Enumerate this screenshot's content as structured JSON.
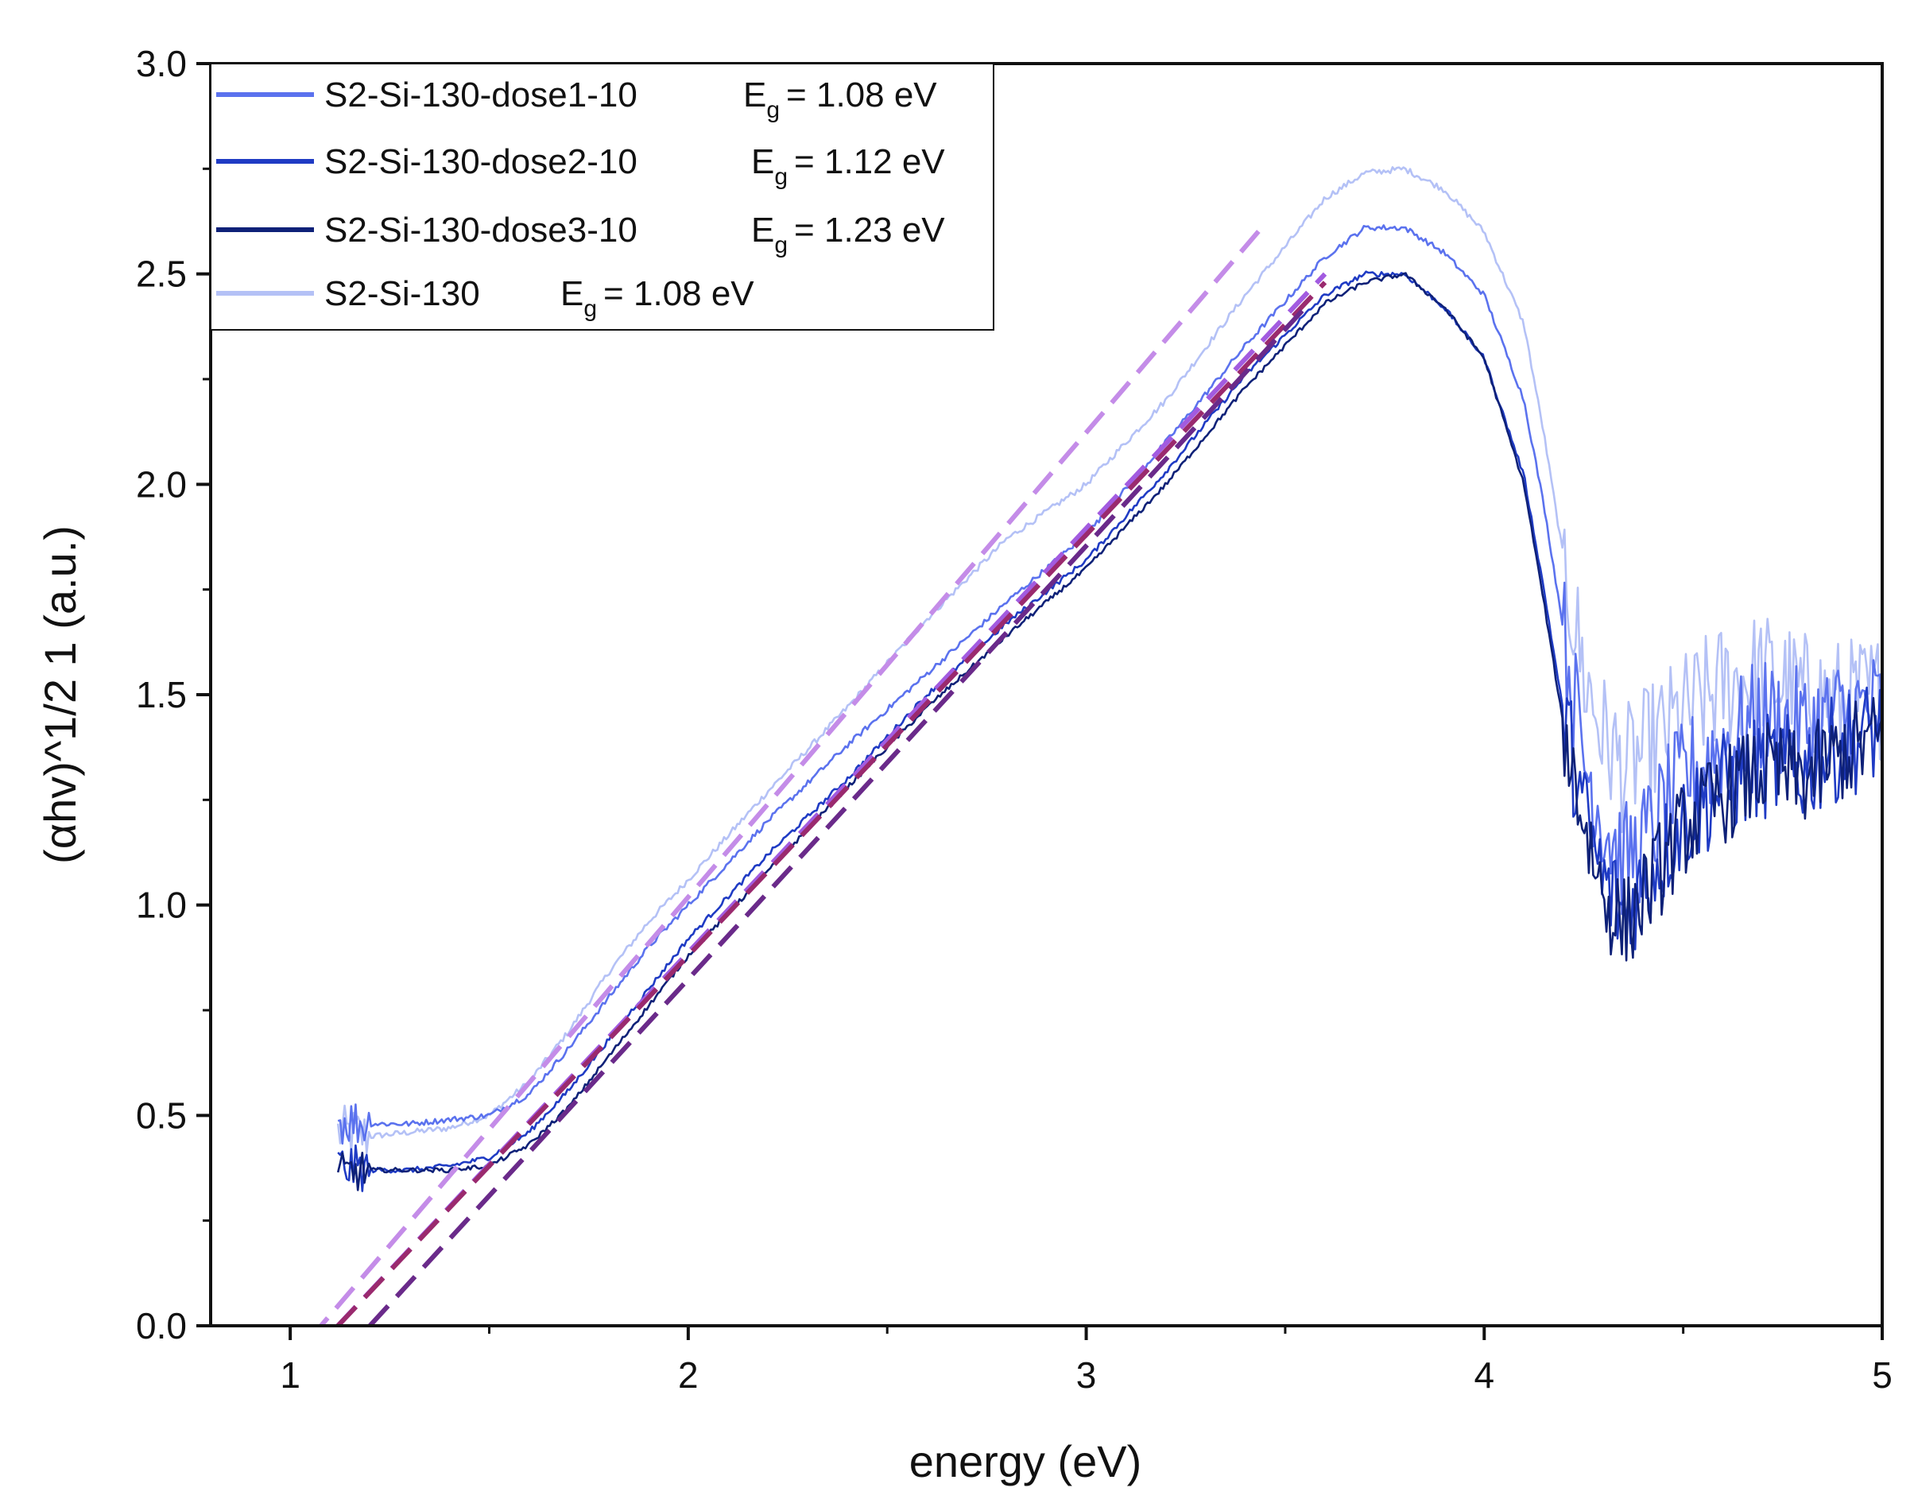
{
  "chart_data": {
    "type": "line",
    "title": "",
    "xlabel": "energy (eV)",
    "ylabel": "(αhv)^1/2 1 (a.u.)",
    "xlim": [
      0.8,
      5.0
    ],
    "ylim": [
      0.0,
      3.0
    ],
    "x_ticks": [
      {
        "value": 1,
        "label": "1"
      },
      {
        "value": 2,
        "label": "2"
      },
      {
        "value": 3,
        "label": "3"
      },
      {
        "value": 4,
        "label": "4"
      },
      {
        "value": 5,
        "label": "5"
      }
    ],
    "x_minor_ticks": [
      1.5,
      2.5,
      3.5,
      4.5
    ],
    "y_ticks": [
      {
        "value": 0.0,
        "label": "0.0"
      },
      {
        "value": 0.5,
        "label": "0.5"
      },
      {
        "value": 1.0,
        "label": "1.0"
      },
      {
        "value": 1.5,
        "label": "1.5"
      },
      {
        "value": 2.0,
        "label": "2.0"
      },
      {
        "value": 2.5,
        "label": "2.5"
      },
      {
        "value": 3.0,
        "label": "3.0"
      }
    ],
    "y_minor_ticks": [
      0.25,
      0.75,
      1.25,
      1.75,
      2.25,
      2.75
    ],
    "grid": false,
    "legend_position": "top-left",
    "eg_prefix": "E",
    "eg_subscript": "g",
    "series": [
      {
        "name": "S2-Si-130-dose1-10",
        "eg_value": "= 1.08 eV",
        "color": "#5b72ee",
        "noise": 0.055,
        "x": [
          1.12,
          1.2,
          1.3,
          1.4,
          1.5,
          1.6,
          1.7,
          1.8,
          1.9,
          2.0,
          2.2,
          2.4,
          2.6,
          2.8,
          3.0,
          3.2,
          3.4,
          3.6,
          3.7,
          3.8,
          3.9,
          4.0,
          4.1,
          4.15,
          4.2,
          4.25,
          4.3,
          4.35,
          4.4,
          4.5,
          4.6,
          4.7,
          4.8,
          4.9,
          5.0
        ],
        "y": [
          0.49,
          0.48,
          0.48,
          0.49,
          0.5,
          0.55,
          0.66,
          0.78,
          0.9,
          1.0,
          1.2,
          1.38,
          1.55,
          1.72,
          1.88,
          2.1,
          2.33,
          2.54,
          2.61,
          2.61,
          2.55,
          2.45,
          2.2,
          1.95,
          1.65,
          1.35,
          1.2,
          1.1,
          1.15,
          1.3,
          1.38,
          1.45,
          1.42,
          1.45,
          1.47
        ]
      },
      {
        "name": "S2-Si-130-dose2-10",
        "eg_value": "= 1.12 eV",
        "color": "#1f3bc4",
        "noise": 0.05,
        "x": [
          1.12,
          1.2,
          1.3,
          1.4,
          1.5,
          1.6,
          1.7,
          1.8,
          1.9,
          2.0,
          2.2,
          2.4,
          2.6,
          2.8,
          3.0,
          3.2,
          3.4,
          3.6,
          3.7,
          3.8,
          3.9,
          4.0,
          4.1,
          4.15,
          4.2,
          4.25,
          4.3,
          4.35,
          4.4,
          4.5,
          4.6,
          4.7,
          4.8,
          4.9,
          5.0
        ],
        "y": [
          0.38,
          0.37,
          0.37,
          0.38,
          0.4,
          0.46,
          0.56,
          0.68,
          0.8,
          0.92,
          1.12,
          1.3,
          1.5,
          1.67,
          1.82,
          2.03,
          2.26,
          2.45,
          2.5,
          2.5,
          2.42,
          2.3,
          2.02,
          1.75,
          1.45,
          1.22,
          1.05,
          0.98,
          1.05,
          1.2,
          1.28,
          1.33,
          1.32,
          1.38,
          1.42
        ]
      },
      {
        "name": "S2-Si-130-dose3-10",
        "eg_value": "= 1.23 eV",
        "color": "#0e2178",
        "noise": 0.045,
        "x": [
          1.12,
          1.2,
          1.3,
          1.4,
          1.5,
          1.6,
          1.7,
          1.8,
          1.9,
          2.0,
          2.2,
          2.4,
          2.6,
          2.8,
          3.0,
          3.2,
          3.4,
          3.6,
          3.7,
          3.8,
          3.9,
          4.0,
          4.1,
          4.15,
          4.2,
          4.25,
          4.3,
          4.35,
          4.4,
          4.5,
          4.6,
          4.7,
          4.8,
          4.9,
          5.0
        ],
        "y": [
          0.36,
          0.37,
          0.37,
          0.37,
          0.38,
          0.43,
          0.52,
          0.64,
          0.76,
          0.88,
          1.08,
          1.28,
          1.47,
          1.64,
          1.8,
          2.0,
          2.23,
          2.43,
          2.48,
          2.5,
          2.42,
          2.3,
          2.0,
          1.72,
          1.42,
          1.2,
          1.02,
          0.95,
          1.02,
          1.18,
          1.26,
          1.32,
          1.3,
          1.36,
          1.4
        ]
      },
      {
        "name": "S2-Si-130",
        "eg_value": "= 1.08 eV",
        "color": "#b4c1f6",
        "noise": 0.06,
        "x": [
          1.12,
          1.2,
          1.3,
          1.4,
          1.5,
          1.6,
          1.7,
          1.8,
          1.9,
          2.0,
          2.2,
          2.4,
          2.6,
          2.8,
          3.0,
          3.2,
          3.4,
          3.6,
          3.7,
          3.8,
          3.9,
          4.0,
          4.1,
          4.15,
          4.2,
          4.25,
          4.3,
          4.35,
          4.4,
          4.5,
          4.6,
          4.7,
          4.8,
          4.9,
          5.0
        ],
        "y": [
          0.46,
          0.45,
          0.46,
          0.47,
          0.5,
          0.58,
          0.7,
          0.84,
          0.96,
          1.06,
          1.27,
          1.47,
          1.68,
          1.87,
          2.0,
          2.2,
          2.45,
          2.68,
          2.74,
          2.75,
          2.7,
          2.6,
          2.38,
          2.12,
          1.82,
          1.55,
          1.4,
          1.32,
          1.36,
          1.45,
          1.52,
          1.55,
          1.5,
          1.48,
          1.5
        ]
      }
    ],
    "fit_lines": [
      {
        "color": "#c48ce8",
        "x": [
          1.05,
          3.45
        ],
        "y": [
          -0.03,
          2.62
        ]
      },
      {
        "color": "#a25be0",
        "x": [
          1.05,
          3.6
        ],
        "y": [
          -0.07,
          2.5
        ]
      },
      {
        "color": "#9a2a6e",
        "x": [
          1.05,
          3.6
        ],
        "y": [
          -0.07,
          2.48
        ]
      },
      {
        "color": "#6a2a8a",
        "x": [
          1.2,
          3.55
        ],
        "y": [
          0.0,
          2.42
        ]
      }
    ]
  }
}
